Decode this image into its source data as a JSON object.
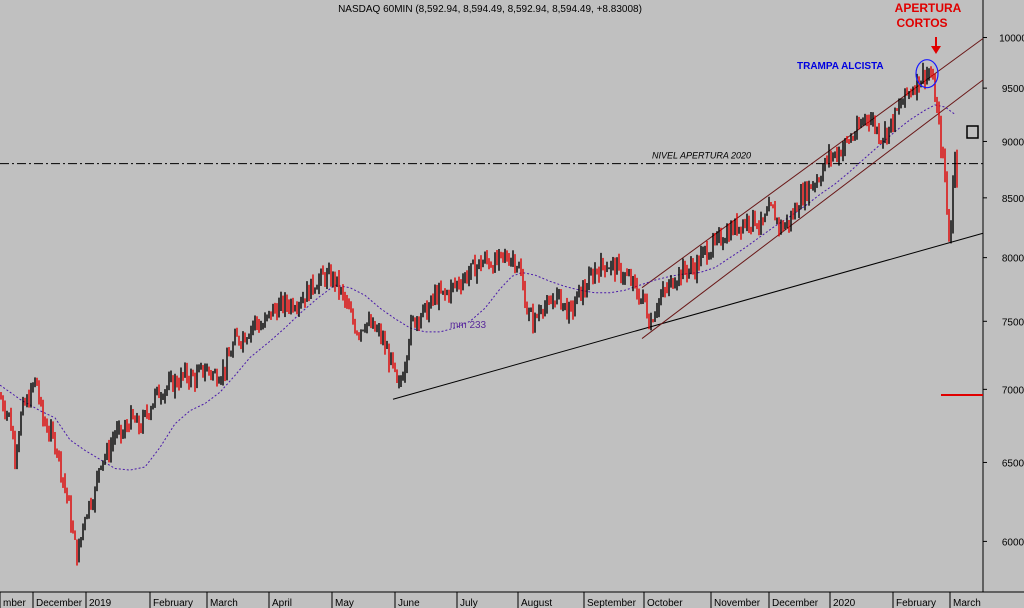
{
  "chart_data": {
    "type": "candlestick",
    "title": "NASDAQ 60MIN (8,592.94, 8,594.49, 8,592.94, 8,594.49, +8.83008)",
    "ylim": [
      5700,
      10200
    ],
    "y_ticks": [
      6000,
      6500,
      7000,
      7500,
      8000,
      8500,
      9000,
      9500,
      10000
    ],
    "x_labels": [
      "mber",
      "December",
      "2019",
      "February",
      "March",
      "April",
      "May",
      "June",
      "July",
      "August",
      "September",
      "October",
      "November",
      "December",
      "2020",
      "February",
      "March"
    ],
    "x_label_pos": [
      0,
      33,
      86,
      150,
      207,
      269,
      332,
      395,
      457,
      518,
      584,
      644,
      711,
      769,
      830,
      893,
      950
    ],
    "price_path": [
      [
        0,
        6950
      ],
      [
        10,
        6800
      ],
      [
        15,
        6560
      ],
      [
        22,
        6850
      ],
      [
        30,
        6950
      ],
      [
        36,
        7080
      ],
      [
        42,
        6800
      ],
      [
        50,
        6700
      ],
      [
        57,
        6600
      ],
      [
        62,
        6420
      ],
      [
        68,
        6250
      ],
      [
        74,
        6000
      ],
      [
        78,
        5900
      ],
      [
        84,
        6150
      ],
      [
        90,
        6250
      ],
      [
        95,
        6300
      ],
      [
        100,
        6520
      ],
      [
        108,
        6560
      ],
      [
        115,
        6700
      ],
      [
        123,
        6680
      ],
      [
        130,
        6800
      ],
      [
        140,
        6730
      ],
      [
        148,
        6850
      ],
      [
        155,
        6950
      ],
      [
        163,
        7000
      ],
      [
        175,
        7050
      ],
      [
        185,
        7100
      ],
      [
        195,
        7080
      ],
      [
        205,
        7150
      ],
      [
        215,
        7100
      ],
      [
        225,
        7150
      ],
      [
        235,
        7350
      ],
      [
        245,
        7400
      ],
      [
        255,
        7500
      ],
      [
        262,
        7450
      ],
      [
        272,
        7580
      ],
      [
        282,
        7620
      ],
      [
        295,
        7650
      ],
      [
        305,
        7700
      ],
      [
        315,
        7800
      ],
      [
        325,
        7850
      ],
      [
        335,
        7820
      ],
      [
        342,
        7700
      ],
      [
        350,
        7550
      ],
      [
        358,
        7420
      ],
      [
        365,
        7500
      ],
      [
        372,
        7450
      ],
      [
        380,
        7400
      ],
      [
        388,
        7250
      ],
      [
        393,
        7150
      ],
      [
        398,
        6980
      ],
      [
        405,
        7200
      ],
      [
        410,
        7450
      ],
      [
        418,
        7550
      ],
      [
        428,
        7580
      ],
      [
        435,
        7700
      ],
      [
        445,
        7700
      ],
      [
        455,
        7780
      ],
      [
        465,
        7850
      ],
      [
        475,
        7920
      ],
      [
        485,
        7980
      ],
      [
        495,
        7950
      ],
      [
        505,
        8000
      ],
      [
        512,
        8010
      ],
      [
        518,
        7950
      ],
      [
        522,
        7800
      ],
      [
        528,
        7550
      ],
      [
        535,
        7500
      ],
      [
        542,
        7650
      ],
      [
        548,
        7580
      ],
      [
        555,
        7700
      ],
      [
        562,
        7650
      ],
      [
        570,
        7550
      ],
      [
        578,
        7700
      ],
      [
        585,
        7750
      ],
      [
        595,
        7900
      ],
      [
        605,
        7950
      ],
      [
        615,
        7920
      ],
      [
        625,
        7850
      ],
      [
        632,
        7800
      ],
      [
        638,
        7700
      ],
      [
        645,
        7650
      ],
      [
        650,
        7480
      ],
      [
        655,
        7600
      ],
      [
        660,
        7680
      ],
      [
        668,
        7750
      ],
      [
        675,
        7850
      ],
      [
        685,
        7900
      ],
      [
        695,
        7920
      ],
      [
        705,
        8050
      ],
      [
        715,
        8100
      ],
      [
        725,
        8200
      ],
      [
        735,
        8250
      ],
      [
        745,
        8300
      ],
      [
        755,
        8320
      ],
      [
        762,
        8250
      ],
      [
        770,
        8400
      ],
      [
        775,
        8350
      ],
      [
        780,
        8250
      ],
      [
        790,
        8300
      ],
      [
        800,
        8500
      ],
      [
        810,
        8600
      ],
      [
        820,
        8700
      ],
      [
        828,
        8850
      ],
      [
        838,
        8900
      ],
      [
        848,
        9000
      ],
      [
        858,
        9100
      ],
      [
        866,
        9250
      ],
      [
        872,
        9200
      ],
      [
        880,
        9050
      ],
      [
        888,
        9100
      ],
      [
        896,
        9250
      ],
      [
        904,
        9400
      ],
      [
        912,
        9500
      ],
      [
        920,
        9600
      ],
      [
        926,
        9650
      ],
      [
        930,
        9650
      ],
      [
        934,
        9500
      ],
      [
        938,
        9200
      ],
      [
        942,
        8900
      ],
      [
        946,
        8600
      ],
      [
        948,
        8200
      ],
      [
        950,
        8150
      ],
      [
        952,
        8450
      ],
      [
        955,
        8950
      ],
      [
        958,
        8600
      ]
    ],
    "ma233_path": [
      [
        0,
        7030
      ],
      [
        20,
        6930
      ],
      [
        40,
        6850
      ],
      [
        55,
        6800
      ],
      [
        70,
        6650
      ],
      [
        85,
        6580
      ],
      [
        100,
        6520
      ],
      [
        115,
        6460
      ],
      [
        130,
        6450
      ],
      [
        145,
        6470
      ],
      [
        160,
        6600
      ],
      [
        175,
        6760
      ],
      [
        190,
        6850
      ],
      [
        205,
        6900
      ],
      [
        220,
        6980
      ],
      [
        235,
        7100
      ],
      [
        250,
        7230
      ],
      [
        270,
        7350
      ],
      [
        285,
        7450
      ],
      [
        300,
        7560
      ],
      [
        318,
        7680
      ],
      [
        335,
        7780
      ],
      [
        350,
        7760
      ],
      [
        365,
        7700
      ],
      [
        380,
        7600
      ],
      [
        395,
        7520
      ],
      [
        410,
        7450
      ],
      [
        425,
        7420
      ],
      [
        440,
        7420
      ],
      [
        455,
        7450
      ],
      [
        470,
        7500
      ],
      [
        485,
        7600
      ],
      [
        500,
        7750
      ],
      [
        512,
        7850
      ],
      [
        522,
        7880
      ],
      [
        535,
        7860
      ],
      [
        550,
        7810
      ],
      [
        565,
        7770
      ],
      [
        580,
        7740
      ],
      [
        595,
        7720
      ],
      [
        610,
        7720
      ],
      [
        625,
        7740
      ],
      [
        640,
        7780
      ],
      [
        655,
        7820
      ],
      [
        670,
        7850
      ],
      [
        685,
        7870
      ],
      [
        700,
        7880
      ],
      [
        715,
        7920
      ],
      [
        730,
        8000
      ],
      [
        745,
        8080
      ],
      [
        760,
        8170
      ],
      [
        775,
        8260
      ],
      [
        790,
        8340
      ],
      [
        805,
        8430
      ],
      [
        820,
        8530
      ],
      [
        835,
        8620
      ],
      [
        850,
        8730
      ],
      [
        865,
        8850
      ],
      [
        880,
        8970
      ],
      [
        895,
        9090
      ],
      [
        910,
        9200
      ],
      [
        925,
        9290
      ],
      [
        935,
        9340
      ],
      [
        945,
        9320
      ],
      [
        955,
        9250
      ]
    ],
    "annotations": {
      "apertura_cortos": "APERTURA CORTOS",
      "trampa_alcista": "TRAMPA ALCISTA",
      "nivel_apertura": "NIVEL APERTURA 2020",
      "mm233": "mm 233",
      "nivel_apertura_value": 8800,
      "red_marker_value": 6960
    },
    "trendlines": [
      {
        "name": "long-support",
        "from": [
          393,
          6930
        ],
        "to": [
          983,
          8200
        ],
        "color": "#000000"
      },
      {
        "name": "channel-upper",
        "from": [
          642,
          7760
        ],
        "to": [
          983,
          9990
        ],
        "color": "#6a1818"
      },
      {
        "name": "channel-lower",
        "from": [
          642,
          7370
        ],
        "to": [
          983,
          9580
        ],
        "color": "#6a1818"
      }
    ],
    "colors": {
      "background": "#c0c0c0",
      "up_candle": "#000000",
      "down_candle": "#e00000",
      "ma": "#4a1aaa",
      "annotation_red": "#e00000",
      "annotation_blue": "#0000e0"
    }
  }
}
